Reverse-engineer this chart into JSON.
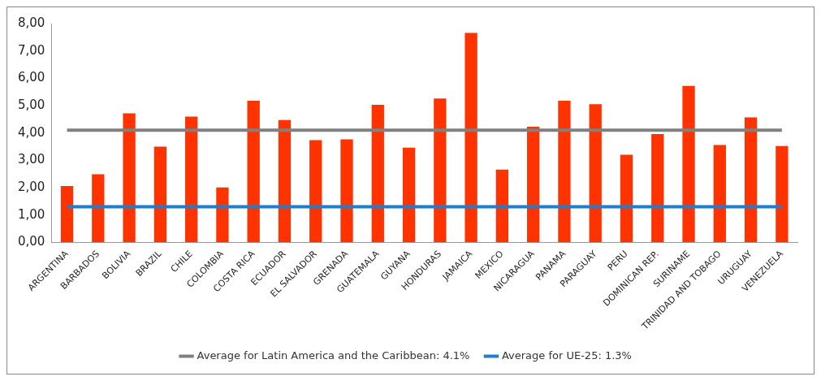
{
  "chart_data": {
    "type": "bar",
    "categories": [
      "ARGENTINA",
      "BARBADOS",
      "BOLIVIA",
      "BRAZIL",
      "CHILE",
      "COLOMBIA",
      "COSTA RICA",
      "ECUADOR",
      "EL SALVADOR",
      "GRENADA",
      "GUATEMALA",
      "GUYANA",
      "HONDURAS",
      "JAMAICA",
      "MEXICO",
      "NICARAGUA",
      "PANAMA",
      "PARAGUAY",
      "PERU",
      "DOMINICAN REP.",
      "SURINAME",
      "TRINIDAD AND TOBAGO",
      "URUGUAY",
      "VENEZUELA"
    ],
    "series": [
      {
        "color": "#ff3300",
        "values": [
          2.06,
          2.49,
          4.72,
          3.5,
          4.6,
          2.01,
          5.18,
          4.47,
          3.74,
          3.77,
          5.03,
          3.46,
          5.26,
          7.66,
          2.66,
          4.23,
          5.18,
          5.05,
          3.2,
          3.96,
          5.72,
          3.56,
          4.57,
          3.52
        ]
      },
      {
        "type": "line",
        "name": "Average for Latin America and the Caribbean: 4.1%",
        "color": "#808080",
        "values": [
          4.1,
          4.1,
          4.1,
          4.1,
          4.1,
          4.1,
          4.1,
          4.1,
          4.1,
          4.1,
          4.1,
          4.1,
          4.1,
          4.1,
          4.1,
          4.1,
          4.1,
          4.1,
          4.1,
          4.1,
          4.1,
          4.1,
          4.1,
          4.1
        ]
      },
      {
        "type": "line",
        "name": "Average for UE-25: 1.3%",
        "color": "#1a7fd0",
        "values": [
          1.3,
          1.3,
          1.3,
          1.3,
          1.3,
          1.3,
          1.3,
          1.3,
          1.3,
          1.3,
          1.3,
          1.3,
          1.3,
          1.3,
          1.3,
          1.3,
          1.3,
          1.3,
          1.3,
          1.3,
          1.3,
          1.3,
          1.3,
          1.3
        ]
      }
    ],
    "ylim": [
      0,
      8
    ],
    "yticks": [
      {
        "value": 0,
        "label": "0,00"
      },
      {
        "value": 1,
        "label": "1,00"
      },
      {
        "value": 2,
        "label": "2,00"
      },
      {
        "value": 3,
        "label": "3,00"
      },
      {
        "value": 4,
        "label": "4,00"
      },
      {
        "value": 5,
        "label": "5,00"
      },
      {
        "value": 6,
        "label": "6,00"
      },
      {
        "value": 7,
        "label": "7,00"
      },
      {
        "value": 8,
        "label": "8,00"
      }
    ],
    "grid": false,
    "legend": "bottom",
    "marker": "none",
    "line_style": "solid"
  }
}
